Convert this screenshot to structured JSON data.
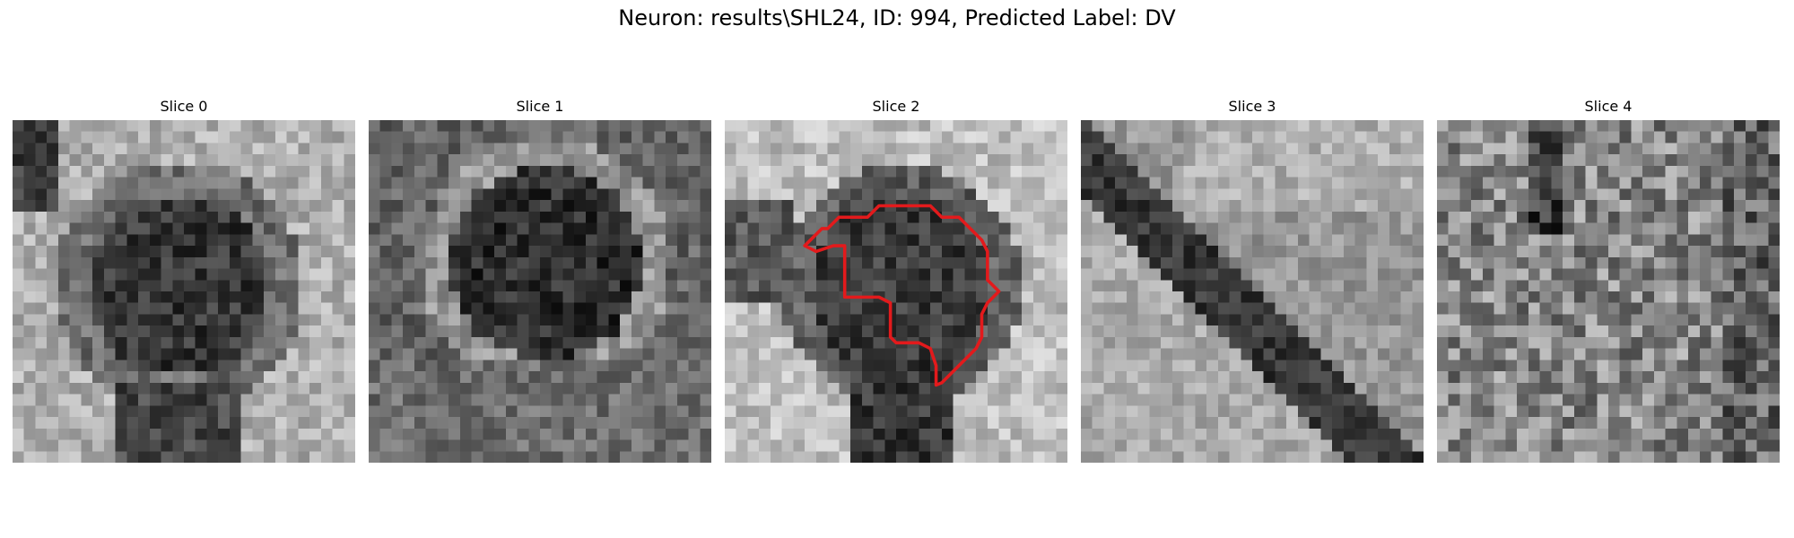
{
  "figure": {
    "title": "Neuron: results\\SHL24, ID: 994, Predicted Label: DV"
  },
  "panels": [
    {
      "title": "Slice 0",
      "pattern": "blob-dark-center"
    },
    {
      "title": "Slice 1",
      "pattern": "blob-dark-center-ring"
    },
    {
      "title": "Slice 2",
      "pattern": "blob-dark-center-contour"
    },
    {
      "title": "Slice 3",
      "pattern": "diagonal-dark-band"
    },
    {
      "title": "Slice 4",
      "pattern": "noisy-texture"
    }
  ],
  "overlay": {
    "panel_index": 2,
    "color": "#e31a1c",
    "label": "segmentation-contour"
  }
}
